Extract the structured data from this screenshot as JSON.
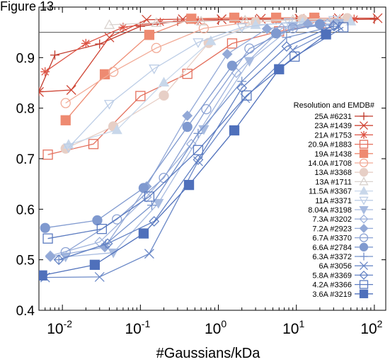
{
  "figure_label": "Figure 13",
  "chart_data": {
    "type": "line",
    "xlabel": "#Gaussians/kDa",
    "ylabel": "",
    "xscale": "log",
    "xlim": [
      0.005,
      140
    ],
    "ylim": [
      0.4,
      1.0
    ],
    "x_ticks": [
      0.01,
      0.1,
      1,
      10,
      100
    ],
    "x_tick_labels": [
      {
        "base": "10",
        "exp": "-2"
      },
      {
        "base": "10",
        "exp": "-1"
      },
      {
        "base": "10",
        "exp": "0"
      },
      {
        "base": "10",
        "exp": "1"
      },
      {
        "base": "10",
        "exp": "2"
      }
    ],
    "y_ticks": [
      0.4,
      0.5,
      0.6,
      0.7,
      0.8,
      0.9
    ],
    "y_tick_labels": [
      "0.4",
      "0.5",
      "0.6",
      "0.7",
      "0.8",
      "0.9"
    ],
    "reference_line_y": 0.95,
    "legend_title": "Resolution and EMDB#",
    "legend_position": "right",
    "series": [
      {
        "name": "25A #6231",
        "color": "#c0392b",
        "marker": "plus",
        "x": [
          0.005,
          0.008,
          0.03,
          0.1,
          0.3,
          1,
          3,
          10,
          30,
          100
        ],
        "y": [
          0.833,
          0.905,
          0.927,
          0.962,
          0.972,
          0.974,
          0.975,
          0.976,
          0.975,
          0.976
        ]
      },
      {
        "name": "23A #1439",
        "color": "#cf4535",
        "marker": "x",
        "x": [
          0.005,
          0.013,
          0.04,
          0.12,
          0.35,
          1.1,
          3.5,
          11,
          35,
          110
        ],
        "y": [
          0.832,
          0.836,
          0.94,
          0.975,
          0.976,
          0.976,
          0.977,
          0.977,
          0.978,
          0.978
        ]
      },
      {
        "name": "21A #1753",
        "color": "#dd5344",
        "marker": "star",
        "x": [
          0.006,
          0.02,
          0.06,
          0.18,
          0.55,
          1.8,
          5.5,
          18,
          55
        ],
        "y": [
          0.872,
          0.928,
          0.96,
          0.97,
          0.973,
          0.974,
          0.975,
          0.975,
          0.976
        ]
      },
      {
        "name": "20.9A #1883",
        "color": "#e46f5c",
        "marker": "square-open",
        "x": [
          0.0065,
          0.025,
          0.1,
          0.4,
          1.5,
          6,
          24
        ],
        "y": [
          0.708,
          0.729,
          0.824,
          0.868,
          0.928,
          0.952,
          0.968
        ]
      },
      {
        "name": "19A #1438",
        "color": "#ee8a71",
        "marker": "square",
        "x": [
          0.011,
          0.035,
          0.13,
          0.45,
          1.6,
          5.5,
          17
        ],
        "y": [
          0.776,
          0.867,
          0.945,
          0.977,
          0.979,
          0.979,
          0.979
        ]
      },
      {
        "name": "14.0A #1708",
        "color": "#f2ab97",
        "marker": "circle-open",
        "x": [
          0.011,
          0.045,
          0.16,
          0.65,
          2.5
        ],
        "y": [
          0.81,
          0.872,
          0.919,
          0.958,
          0.97
        ]
      },
      {
        "name": "13A #3368",
        "color": "#e7cfc6",
        "marker": "circle",
        "x": [
          0.011,
          0.045,
          0.2,
          0.75,
          3,
          12,
          45
        ],
        "y": [
          0.72,
          0.764,
          0.825,
          0.929,
          0.97,
          0.976,
          0.978
        ]
      },
      {
        "name": "13A #1711",
        "color": "#d9d2ce",
        "marker": "triangle-open",
        "x": [
          0.04,
          0.16,
          0.6,
          2.2,
          9,
          36
        ],
        "y": [
          0.965,
          0.969,
          0.972,
          0.974,
          0.975,
          0.976
        ]
      },
      {
        "name": "11.5A #3367",
        "color": "#c8d7ea",
        "marker": "triangle",
        "x": [
          0.012,
          0.05,
          0.2,
          0.8,
          3,
          12,
          50
        ],
        "y": [
          0.728,
          0.757,
          0.851,
          0.933,
          0.965,
          0.97,
          0.972
        ]
      },
      {
        "name": "11A #3371",
        "color": "#bccde6",
        "marker": "triangle-down-open",
        "x": [
          0.012,
          0.04,
          0.15,
          0.55,
          2,
          8,
          30
        ],
        "y": [
          0.722,
          0.808,
          0.878,
          0.93,
          0.96,
          0.97,
          0.974
        ]
      },
      {
        "name": "8.04A #3198",
        "color": "#a7bbe0",
        "marker": "triangle-down",
        "x": [
          0.011,
          0.045,
          0.17,
          0.65,
          2.5,
          9,
          35
        ],
        "y": [
          0.506,
          0.514,
          0.612,
          0.758,
          0.893,
          0.962,
          0.968
        ]
      },
      {
        "name": "7.3A #3202",
        "color": "#9fb3dc",
        "marker": "diamond-open",
        "x": [
          0.007,
          0.03,
          0.12,
          0.45,
          1.7,
          6.5,
          25
        ],
        "y": [
          0.508,
          0.535,
          0.624,
          0.729,
          0.87,
          0.958,
          0.967
        ]
      },
      {
        "name": "7.2A #2923",
        "color": "#93a9d7",
        "marker": "diamond",
        "x": [
          0.007,
          0.035,
          0.12,
          0.4,
          1.3,
          4.2,
          14
        ],
        "y": [
          0.506,
          0.525,
          0.645,
          0.785,
          0.907,
          0.957,
          0.967
        ]
      },
      {
        "name": "6.7A #3370",
        "color": "#8aa1d3",
        "marker": "circle-open",
        "x": [
          0.011,
          0.05,
          0.2,
          0.7,
          2.5,
          9,
          32
        ],
        "y": [
          0.515,
          0.58,
          0.662,
          0.798,
          0.918,
          0.958,
          0.966
        ]
      },
      {
        "name": "6.6A #2784",
        "color": "#7f99cf",
        "marker": "circle",
        "x": [
          0.006,
          0.028,
          0.11,
          0.4,
          1.5,
          5.5,
          20
        ],
        "y": [
          0.563,
          0.578,
          0.642,
          0.763,
          0.884,
          0.948,
          0.966
        ]
      },
      {
        "name": "6.3A #3372",
        "color": "#7592cb",
        "marker": "plus",
        "x": [
          0.009,
          0.036,
          0.14,
          0.55,
          2,
          7.5,
          30
        ],
        "y": [
          0.5,
          0.531,
          0.608,
          0.75,
          0.853,
          0.94,
          0.962
        ]
      },
      {
        "name": "6A #3056",
        "color": "#6b89c7",
        "marker": "x",
        "x": [
          0.006,
          0.03,
          0.13,
          0.55,
          2.2,
          9,
          35
        ],
        "y": [
          0.465,
          0.466,
          0.512,
          0.695,
          0.82,
          0.915,
          0.962
        ]
      },
      {
        "name": "5.8A #3369",
        "color": "#6382c4",
        "marker": "diamond-open",
        "x": [
          0.009,
          0.038,
          0.15,
          0.55,
          2,
          7.5,
          30
        ],
        "y": [
          0.5,
          0.532,
          0.576,
          0.698,
          0.84,
          0.922,
          0.963
        ]
      },
      {
        "name": "4.2A #3366",
        "color": "#5b7bc0",
        "marker": "square-open",
        "x": [
          0.0065,
          0.032,
          0.13,
          0.55,
          2.3,
          9.5,
          40
        ],
        "y": [
          0.542,
          0.561,
          0.625,
          0.717,
          0.825,
          0.902,
          0.96
        ]
      },
      {
        "name": "3.6A #3219",
        "color": "#4f70bb",
        "marker": "square",
        "x": [
          0.0055,
          0.026,
          0.11,
          0.42,
          1.6,
          6,
          24
        ],
        "y": [
          0.469,
          0.49,
          0.552,
          0.648,
          0.756,
          0.877,
          0.946
        ]
      }
    ]
  }
}
